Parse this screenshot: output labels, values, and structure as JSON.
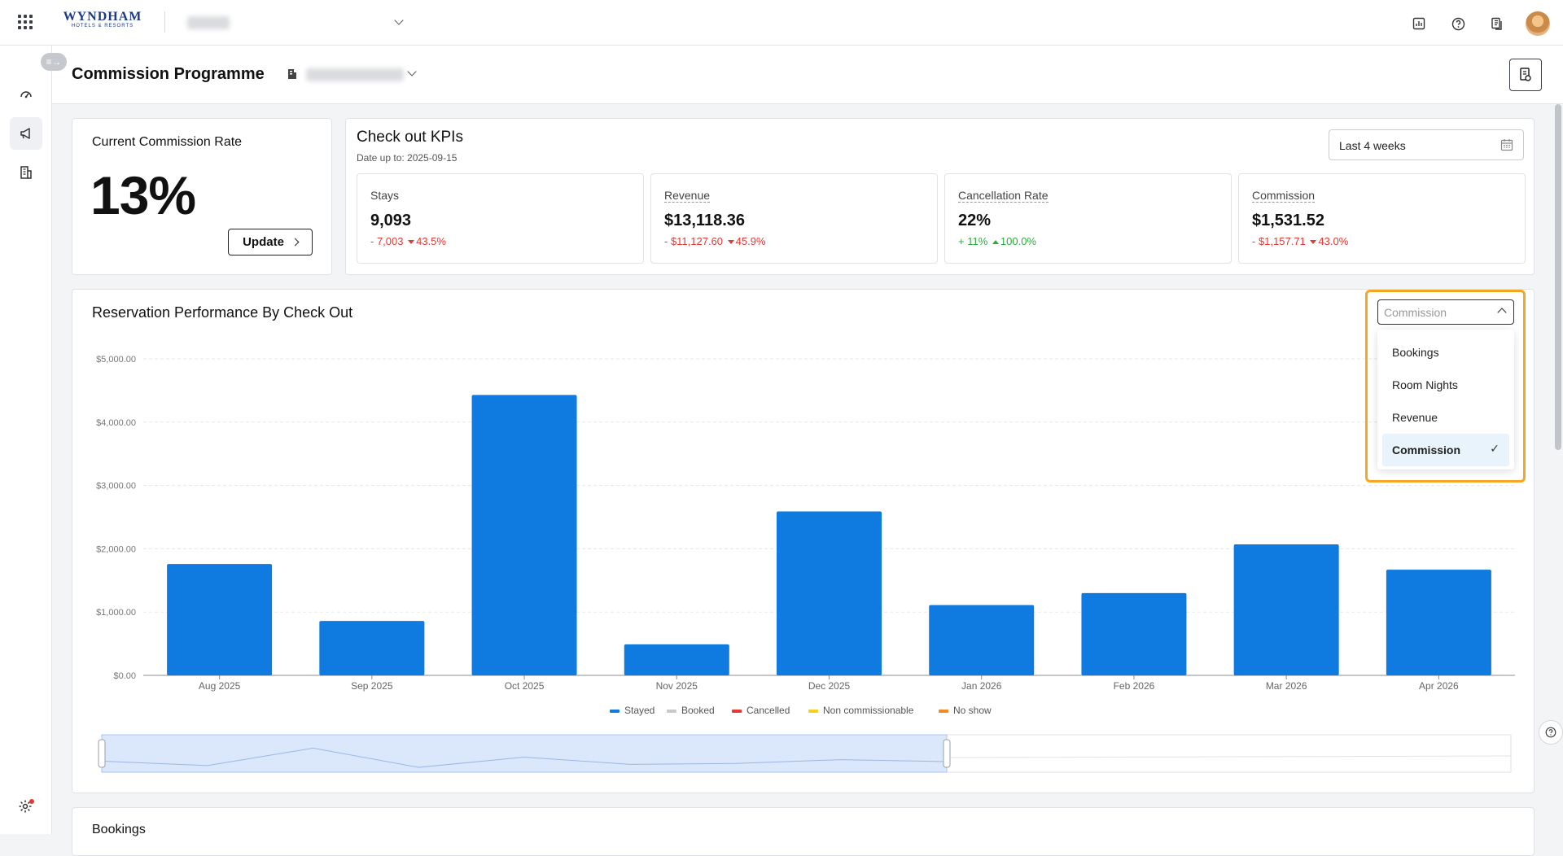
{
  "brand": {
    "name": "WYNDHAM",
    "tagline": "HOTELS & RESORTS"
  },
  "page": {
    "title": "Commission Programme"
  },
  "commission_rate": {
    "title": "Current Commission Rate",
    "value": "13%",
    "update_label": "Update"
  },
  "kpis": {
    "title": "Check out KPIs",
    "date_note": "Date up to: 2025-09-15",
    "period": "Last 4 weeks",
    "items": [
      {
        "label": "Stays",
        "value": "9,093",
        "delta": "- 7,003",
        "pct": "43.5%",
        "direction": "down"
      },
      {
        "label": "Revenue",
        "value": "$13,118.36",
        "delta": "- $11,127.60",
        "pct": "45.9%",
        "direction": "down"
      },
      {
        "label": "Cancellation Rate",
        "value": "22%",
        "delta": "+ 11%",
        "pct": "100.0%",
        "direction": "up"
      },
      {
        "label": "Commission",
        "value": "$1,531.52",
        "delta": "- $1,157.71",
        "pct": "43.0%",
        "direction": "down"
      }
    ]
  },
  "metric_selector": {
    "value": "Commission",
    "options": [
      "Bookings",
      "Room Nights",
      "Revenue",
      "Commission"
    ],
    "selected": "Commission"
  },
  "chart_data": {
    "type": "bar",
    "title": "Reservation Performance By Check Out",
    "categories": [
      "Aug 2025",
      "Sep 2025",
      "Oct 2025",
      "Nov 2025",
      "Dec 2025",
      "Jan 2026",
      "Feb 2026",
      "Mar 2026",
      "Apr 2026"
    ],
    "series": [
      {
        "name": "Stayed",
        "values": [
          1760,
          860,
          4430,
          490,
          2590,
          1110,
          1300,
          2070,
          1670
        ],
        "color": "#0f7ae0"
      }
    ],
    "ylim": [
      0,
      5000
    ],
    "yticks": [
      "$0.00",
      "$1,000.00",
      "$2,000.00",
      "$3,000.00",
      "$4,000.00",
      "$5,000.00"
    ],
    "legend": [
      {
        "name": "Stayed",
        "color": "#0f7ae0"
      },
      {
        "name": "Booked",
        "color": "#c8c8c8"
      },
      {
        "name": "Cancelled",
        "color": "#e53935"
      },
      {
        "name": "Non commissionable",
        "color": "#f5d020"
      },
      {
        "name": "No show",
        "color": "#f08a24"
      }
    ],
    "legend_position": "bottom",
    "grid": true
  },
  "bookings": {
    "title": "Bookings"
  },
  "colors": {
    "accent": "#0f7ae0",
    "highlight": "#f5a623",
    "negative": "#e53935",
    "positive": "#2eab3f"
  }
}
